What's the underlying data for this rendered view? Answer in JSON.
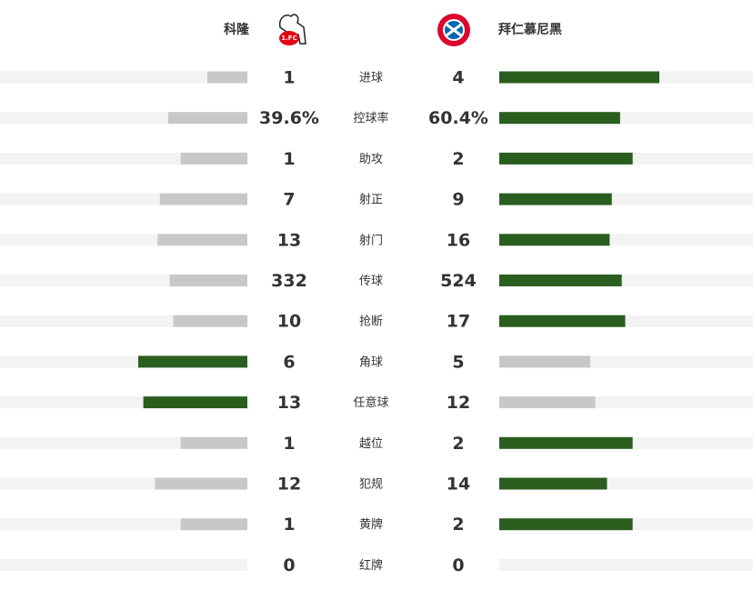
{
  "header": {
    "home": "科隆",
    "away": "拜仁慕尼黑"
  },
  "stats": [
    {
      "name": "进球",
      "home": 1,
      "away": 4
    },
    {
      "name": "控球率",
      "home": 39.6,
      "away": 60.4,
      "home_label": "39.6%",
      "away_label": "60.4%"
    },
    {
      "name": "助攻",
      "home": 1,
      "away": 2
    },
    {
      "name": "射正",
      "home": 7,
      "away": 9
    },
    {
      "name": "射门",
      "home": 13,
      "away": 16
    },
    {
      "name": "传球",
      "home": 332,
      "away": 524
    },
    {
      "name": "抢断",
      "home": 10,
      "away": 17
    },
    {
      "name": "角球",
      "home": 6,
      "away": 5
    },
    {
      "name": "任意球",
      "home": 13,
      "away": 12
    },
    {
      "name": "越位",
      "home": 1,
      "away": 2
    },
    {
      "name": "犯规",
      "home": 12,
      "away": 14
    },
    {
      "name": "黄牌",
      "home": 1,
      "away": 2
    },
    {
      "name": "红牌",
      "home": 0,
      "away": 0
    }
  ]
}
